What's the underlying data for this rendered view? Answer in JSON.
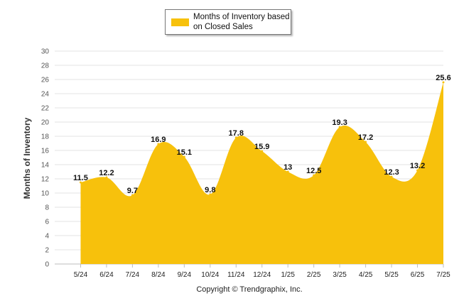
{
  "chart_data": {
    "type": "area",
    "categories": [
      "5/24",
      "6/24",
      "7/24",
      "8/24",
      "9/24",
      "10/24",
      "11/24",
      "12/24",
      "1/25",
      "2/25",
      "3/25",
      "4/25",
      "5/25",
      "6/25",
      "7/25"
    ],
    "series": [
      {
        "name": "Months of Inventory based on Closed Sales",
        "values": [
          11.5,
          12.2,
          9.7,
          16.9,
          15.1,
          9.8,
          17.8,
          15.9,
          13,
          12.5,
          19.3,
          17.2,
          12.3,
          13.2,
          25.6
        ],
        "color": "#f7c10c"
      }
    ],
    "ylabel": "Months of Inventory",
    "ylim": [
      0,
      30
    ],
    "yticks": [
      0,
      2,
      4,
      6,
      8,
      10,
      12,
      14,
      16,
      18,
      20,
      22,
      24,
      26,
      28,
      30
    ],
    "grid": true,
    "legend_position": "top-center",
    "data_labels": true
  },
  "footer": {
    "copyright": "Copyright © Trendgraphix, Inc."
  }
}
